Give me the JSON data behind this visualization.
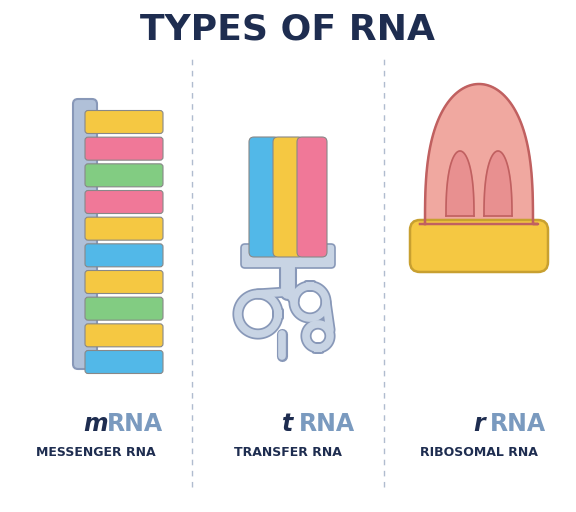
{
  "title": "TYPES OF RNA",
  "title_fontsize": 26,
  "title_color": "#1e2d50",
  "background_color": "#ffffff",
  "divider_color": "#b0bccf",
  "label_dark": "#1e2d50",
  "label_blue": "#7a9abf",
  "mrna_sub": "MESSENGER RNA",
  "trna_sub": "TRANSFER RNA",
  "rrna_sub": "RIBOSOMAL RNA",
  "mrna_backbone_color": "#b0c0d8",
  "mrna_backbone_edge": "#8898b8",
  "mrna_strand_colors": [
    "#f5c842",
    "#f07898",
    "#82cc82",
    "#f07898",
    "#f5c842",
    "#52b8e8",
    "#f5c842",
    "#82cc82",
    "#f5c842",
    "#52b8e8"
  ],
  "mrna_strand_edge": "#c8a030",
  "trna_blue": "#52b8e8",
  "trna_yellow": "#f5c842",
  "trna_pink": "#f07898",
  "trna_loop_fill": "#c8d4e4",
  "trna_loop_edge": "#8898b8",
  "rrna_large_fill": "#f0a8a0",
  "rrna_large_edge": "#c06060",
  "rrna_inner_fill": "#e89090",
  "rrna_notch_fill": "#f0b8b0",
  "rrna_small_fill": "#f5c842",
  "rrna_small_edge": "#c8a030"
}
